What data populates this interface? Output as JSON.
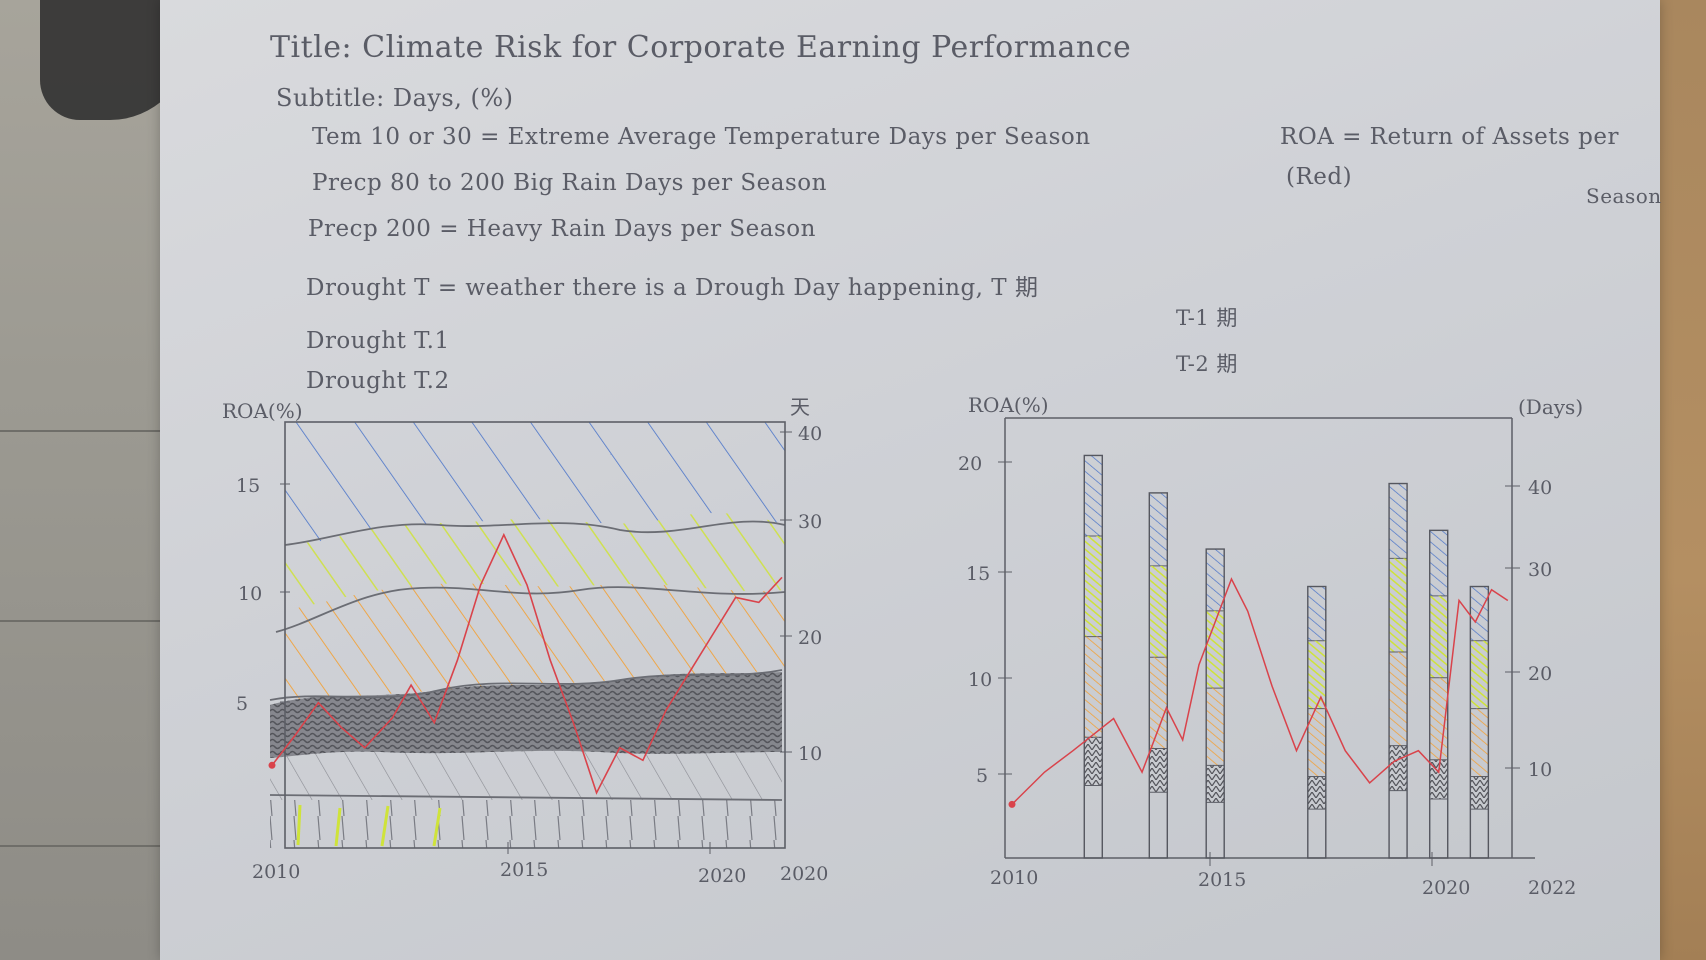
{
  "title": "Title: Climate Risk for Corporate Earning Performance",
  "subtitle": "Subtitle: Days, (%)",
  "definitions": {
    "tem": "Tem 10 or 30 = Extreme Average Temperature Days per Season",
    "precp80": "Precp 80 to 200 Big Rain Days per Season",
    "precp200": "Precp 200 = Heavy Rain Days per Season",
    "drought_t": "Drought T = weather there is a Drough Day happening, T 期",
    "drought_t1": "Drought T.1",
    "drought_t2": "Drought T.2",
    "t1_note": "T-1 期",
    "t2_note": "T-2 期",
    "roa_line1": "ROA = Return of Assets per",
    "roa_line2": "(Red)",
    "roa_line3": "Season"
  },
  "colors": {
    "roa_line": "#d9434b",
    "blue": "#4a74c9",
    "yellow": "#cfe33a",
    "orange": "#f2a23a",
    "graphite": "#555555",
    "pencil": "#5a5c66"
  },
  "chart_data": [
    {
      "type": "area",
      "y_left_label": "ROA(%)",
      "y_right_label": "天",
      "y_left_ticks": [
        "15",
        "10",
        "5"
      ],
      "y_right_ticks": [
        "40",
        "30",
        "20",
        "10"
      ],
      "x_ticks": [
        "2010",
        "2015",
        "2020",
        "2020"
      ],
      "y_left_lim": [
        0,
        17
      ],
      "y_right_lim": [
        0,
        40
      ],
      "x_lim": [
        2010,
        2021
      ],
      "grid": false,
      "roa_series": {
        "x": [
          2010,
          2010.5,
          2011,
          2011.5,
          2012,
          2012.6,
          2013,
          2013.5,
          2014,
          2014.5,
          2015,
          2015.5,
          2016,
          2016.5,
          2017,
          2017.5,
          2018,
          2018.5,
          2019,
          2019.5,
          2020,
          2020.5,
          2021
        ],
        "y": [
          3.3,
          4.5,
          5.8,
          4.8,
          4.0,
          5.2,
          6.5,
          5.0,
          7.5,
          10.5,
          12.5,
          10.5,
          7.5,
          5.0,
          2.2,
          4.0,
          3.5,
          5.5,
          7.0,
          8.5,
          10.0,
          9.8,
          10.8
        ]
      }
    },
    {
      "type": "bar",
      "y_left_label": "ROA(%)",
      "y_right_label": "(Days)",
      "y_left_ticks": [
        "20",
        "15",
        "10",
        "5"
      ],
      "y_right_ticks": [
        "40",
        "30",
        "20",
        "10"
      ],
      "x_ticks": [
        "2010",
        "2015",
        "2020",
        "2022"
      ],
      "y_left_lim": [
        1,
        21.5
      ],
      "y_right_lim": [
        1,
        48
      ],
      "x_lim": [
        2010,
        2022.5
      ],
      "grid": false,
      "bar_years": [
        2012,
        2013.6,
        2015,
        2017.5,
        2019.5,
        2020.5,
        2021.5
      ],
      "bar_heights_days": [
        44,
        40,
        34,
        30,
        41,
        36,
        30
      ],
      "roa_series": {
        "x": [
          2010,
          2010.8,
          2011.5,
          2012.5,
          2013.2,
          2013.8,
          2014.2,
          2014.6,
          2015,
          2015.4,
          2015.8,
          2016.4,
          2017,
          2017.6,
          2018.2,
          2018.8,
          2019.4,
          2020,
          2020.5,
          2021,
          2021.4,
          2021.8,
          2022.2
        ],
        "y": [
          3.5,
          5.0,
          6.0,
          7.5,
          5.0,
          8.0,
          6.5,
          10.0,
          12.0,
          14.0,
          12.5,
          9.0,
          6.0,
          8.5,
          6.0,
          4.5,
          5.5,
          6.0,
          5.0,
          13.0,
          12.0,
          13.5,
          13.0
        ]
      }
    }
  ]
}
